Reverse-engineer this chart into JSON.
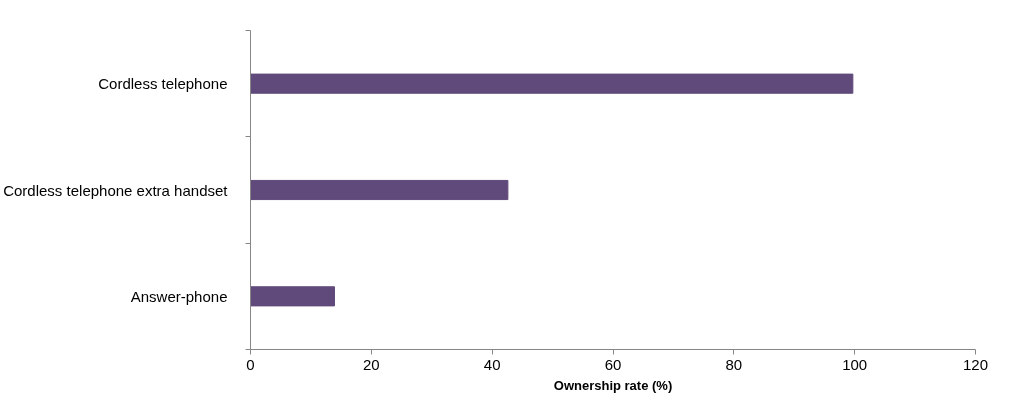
{
  "chart_data": {
    "type": "bar",
    "orientation": "horizontal",
    "categories": [
      "Cordless telephone",
      "Cordless telephone extra handset",
      "Answer-phone"
    ],
    "values": [
      99.7,
      42.6,
      13.9
    ],
    "color": "#604a7b",
    "xlabel": "Ownership rate (%)",
    "xlim": [
      0,
      120
    ],
    "xticks": [
      0,
      20,
      40,
      60,
      80,
      100,
      120
    ],
    "grid": false
  }
}
